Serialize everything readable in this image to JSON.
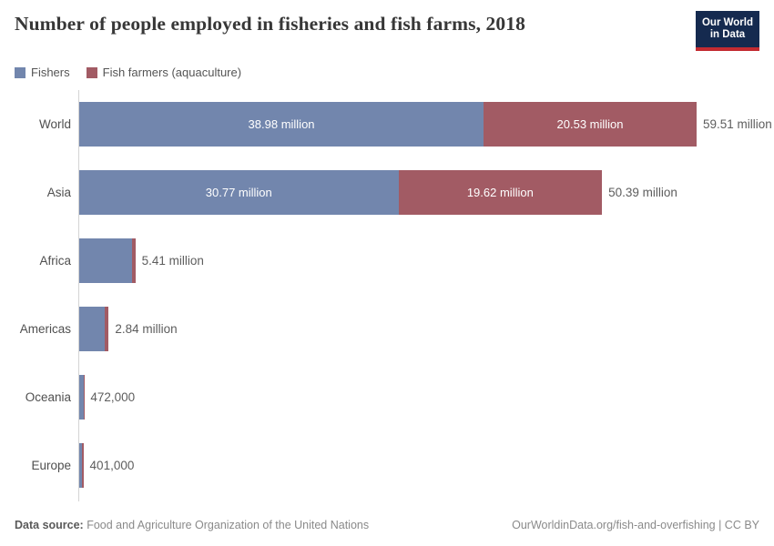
{
  "header": {
    "title": "Number of people employed in fisheries and fish farms, 2018",
    "logo": {
      "line1": "Our World",
      "line2": "in Data",
      "bg_color": "#152a4f",
      "accent_color": "#c32b31"
    }
  },
  "legend": {
    "items": [
      {
        "label": "Fishers",
        "color": "#7286ad"
      },
      {
        "label": "Fish farmers (aquaculture)",
        "color": "#a25b64"
      }
    ]
  },
  "chart_data": {
    "type": "bar",
    "orientation": "horizontal",
    "stacked": true,
    "grid": false,
    "legend_position": "top",
    "title": "Number of people employed in fisheries and fish farms, 2018",
    "unit": "people (millions)",
    "categories": [
      "World",
      "Asia",
      "Africa",
      "Americas",
      "Oceania",
      "Europe"
    ],
    "series": [
      {
        "name": "Fishers",
        "color": "#7286ad",
        "values": [
          38.98,
          30.77,
          5.06,
          2.46,
          0.46,
          0.22
        ]
      },
      {
        "name": "Fish farmers (aquaculture)",
        "color": "#a25b64",
        "values": [
          20.53,
          19.62,
          0.35,
          0.38,
          0.012,
          0.18
        ]
      }
    ],
    "segment_labels": [
      [
        "38.98 million",
        "20.53 million"
      ],
      [
        "30.77 million",
        "19.62 million"
      ],
      [
        null,
        null
      ],
      [
        null,
        null
      ],
      [
        null,
        null
      ],
      [
        null,
        null
      ]
    ],
    "totals": [
      59.51,
      50.39,
      5.41,
      2.84,
      0.472,
      0.401
    ],
    "total_labels": [
      "59.51 million",
      "50.39 million",
      "5.41 million",
      "2.84 million",
      "472,000",
      "401,000"
    ],
    "xmax": 59.51
  },
  "footer": {
    "datasource_label": "Data source:",
    "datasource_value": " Food and Agriculture Organization of the United Nations",
    "link": "OurWorldinData.org/fish-and-overfishing | CC BY"
  }
}
